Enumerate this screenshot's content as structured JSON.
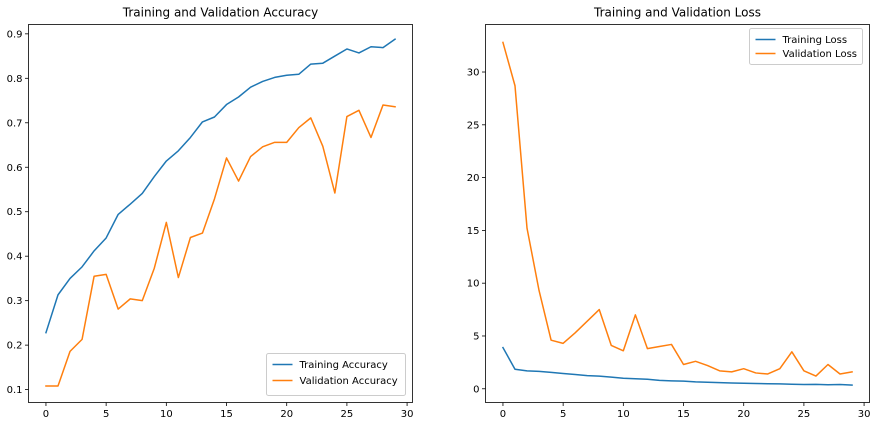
{
  "chart_data": [
    {
      "type": "line",
      "title": "Training and Validation Accuracy",
      "xlabel": "",
      "ylabel": "",
      "xlim": [
        -1.45,
        30.45
      ],
      "ylim": [
        0.071,
        0.921
      ],
      "xticks": [
        0,
        5,
        10,
        15,
        20,
        25,
        30
      ],
      "yticks": [
        0.1,
        0.2,
        0.3,
        0.4,
        0.5,
        0.6,
        0.7,
        0.8,
        0.9
      ],
      "grid": false,
      "legend_position": "lower right",
      "x": [
        0,
        1,
        2,
        3,
        4,
        5,
        6,
        7,
        8,
        9,
        10,
        11,
        12,
        13,
        14,
        15,
        16,
        17,
        18,
        19,
        20,
        21,
        22,
        23,
        24,
        25,
        26,
        27,
        28,
        29
      ],
      "series": [
        {
          "name": "Training Accuracy",
          "color": "#1f77b4",
          "values": [
            0.228,
            0.313,
            0.35,
            0.376,
            0.412,
            0.441,
            0.494,
            0.517,
            0.541,
            0.579,
            0.614,
            0.637,
            0.667,
            0.702,
            0.713,
            0.741,
            0.758,
            0.78,
            0.793,
            0.802,
            0.807,
            0.809,
            0.832,
            0.834,
            0.85,
            0.866,
            0.857,
            0.871,
            0.869,
            0.888
          ]
        },
        {
          "name": "Validation Accuracy",
          "color": "#ff7f0e",
          "values": [
            0.108,
            0.108,
            0.186,
            0.213,
            0.355,
            0.359,
            0.281,
            0.304,
            0.3,
            0.373,
            0.476,
            0.352,
            0.442,
            0.452,
            0.529,
            0.621,
            0.569,
            0.624,
            0.646,
            0.656,
            0.656,
            0.689,
            0.711,
            0.647,
            0.542,
            0.714,
            0.728,
            0.667,
            0.74,
            0.736
          ]
        }
      ]
    },
    {
      "type": "line",
      "title": "Training and Validation Loss",
      "xlabel": "",
      "ylabel": "",
      "xlim": [
        -1.45,
        30.45
      ],
      "ylim": [
        -1.3,
        34.5
      ],
      "xticks": [
        0,
        5,
        10,
        15,
        20,
        25,
        30
      ],
      "yticks": [
        0,
        5,
        10,
        15,
        20,
        25,
        30
      ],
      "grid": false,
      "legend_position": "upper right",
      "x": [
        0,
        1,
        2,
        3,
        4,
        5,
        6,
        7,
        8,
        9,
        10,
        11,
        12,
        13,
        14,
        15,
        16,
        17,
        18,
        19,
        20,
        21,
        22,
        23,
        24,
        25,
        26,
        27,
        28,
        29
      ],
      "series": [
        {
          "name": "Training Loss",
          "color": "#1f77b4",
          "values": [
            3.9,
            1.85,
            1.7,
            1.65,
            1.55,
            1.45,
            1.35,
            1.25,
            1.2,
            1.1,
            1.0,
            0.95,
            0.9,
            0.8,
            0.75,
            0.72,
            0.65,
            0.62,
            0.58,
            0.55,
            0.52,
            0.5,
            0.48,
            0.46,
            0.43,
            0.4,
            0.42,
            0.38,
            0.4,
            0.35
          ]
        },
        {
          "name": "Validation Loss",
          "color": "#ff7f0e",
          "values": [
            32.8,
            28.7,
            15.2,
            9.3,
            4.6,
            4.3,
            5.3,
            6.4,
            7.5,
            4.1,
            3.6,
            7.0,
            3.8,
            4.0,
            4.2,
            2.3,
            2.6,
            2.2,
            1.7,
            1.6,
            1.9,
            1.5,
            1.4,
            1.9,
            3.5,
            1.7,
            1.2,
            2.3,
            1.4,
            1.6
          ]
        }
      ]
    }
  ]
}
